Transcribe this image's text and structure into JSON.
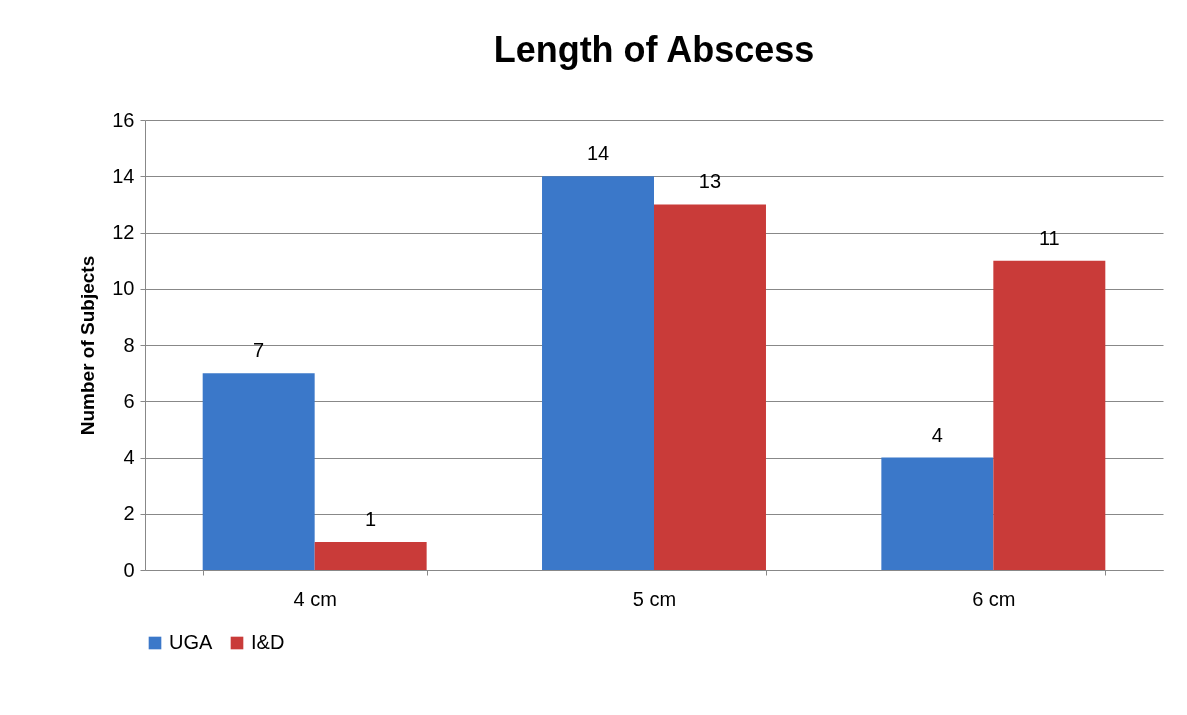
{
  "chart_data": {
    "type": "bar",
    "title": "Length of Abscess",
    "ylabel": "Number of Subjects",
    "categories": [
      "4 cm",
      "5 cm",
      "6 cm"
    ],
    "series": [
      {
        "name": "UGA",
        "color": "#3b78c9",
        "values": [
          7,
          14,
          4
        ]
      },
      {
        "name": "I&D",
        "color": "#c93b39",
        "values": [
          1,
          13,
          11
        ]
      }
    ],
    "ylim": [
      0,
      16
    ],
    "yticks": [
      0,
      2,
      4,
      6,
      8,
      10,
      12,
      14,
      16
    ],
    "grid": "y",
    "legend": "bottom",
    "data_labels": true
  }
}
